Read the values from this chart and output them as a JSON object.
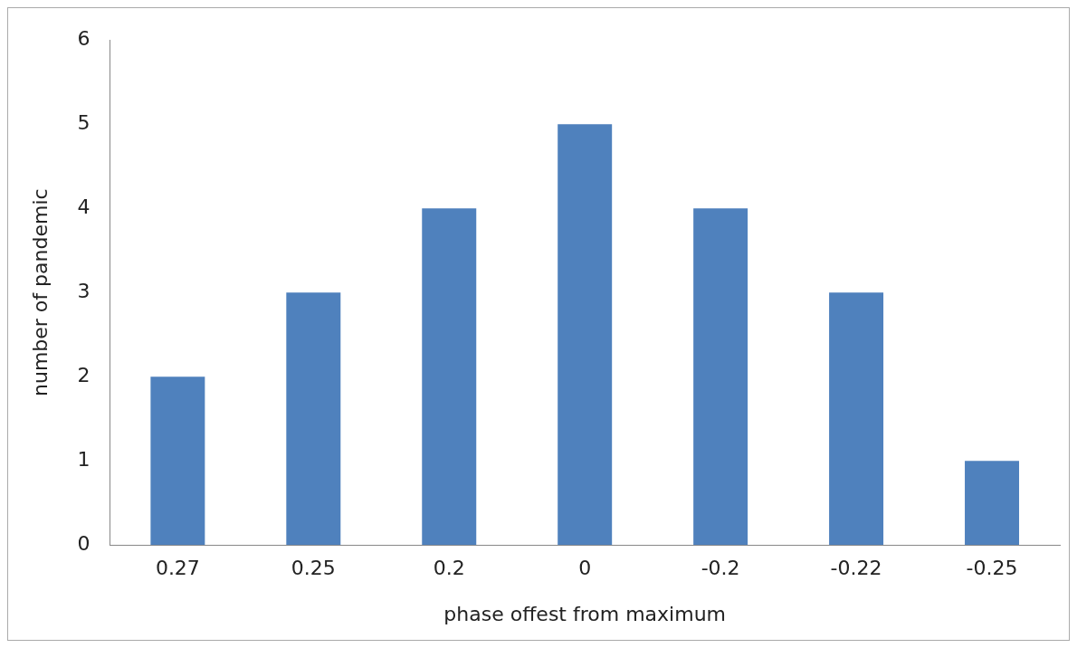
{
  "chart_data": {
    "type": "bar",
    "xlabel": "phase offest from maximum",
    "ylabel": "number of pandemic",
    "categories": [
      "0.27",
      "0.25",
      "0.2",
      "0",
      "-0.2",
      "-0.22",
      "-0.25"
    ],
    "values": [
      2,
      3,
      4,
      5,
      4,
      3,
      1
    ],
    "color": "#4f81bd",
    "ylim": [
      0,
      6
    ],
    "yticks": [
      0,
      1,
      2,
      3,
      4,
      5,
      6
    ],
    "grid": false,
    "legend": false
  }
}
